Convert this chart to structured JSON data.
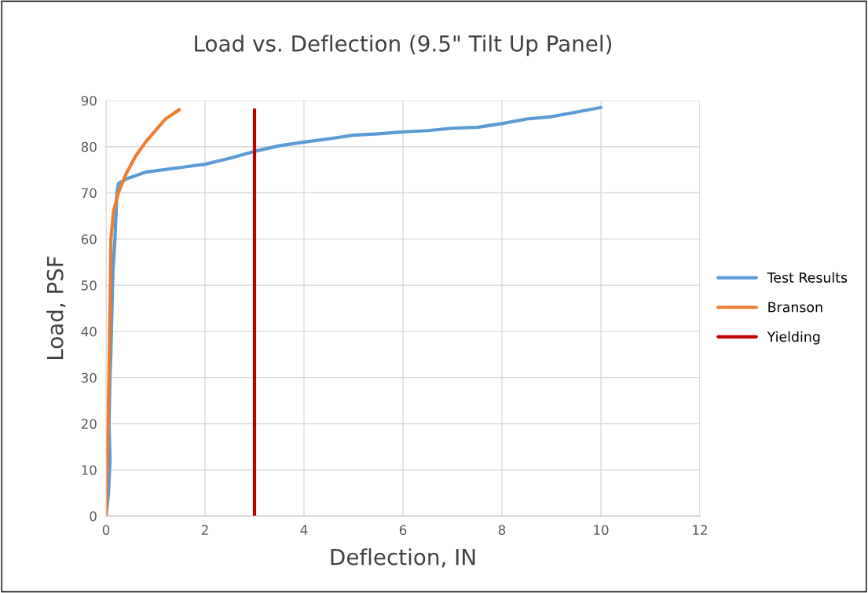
{
  "chart_data": {
    "type": "line",
    "title": "Load vs. Deflection (9.5\" Tilt Up Panel)",
    "xlabel": "Deflection, IN",
    "ylabel": "Load, PSF",
    "xlim": [
      0,
      12
    ],
    "xticks": [
      0,
      2,
      4,
      6,
      8,
      10,
      12
    ],
    "ylim": [
      0,
      90
    ],
    "yticks": [
      0,
      10,
      20,
      30,
      40,
      50,
      60,
      70,
      80,
      90
    ],
    "grid": true,
    "legend": "right",
    "marker": "none",
    "line_style": "solid",
    "series": [
      {
        "name": "Test Results",
        "color": "#5b9bd5",
        "x": [
          0,
          0.05,
          0.08,
          0.06,
          0.08,
          0.1,
          0.12,
          0.14,
          0.18,
          0.2,
          0.22,
          0.25,
          0.4,
          0.8,
          1.5,
          2,
          2.5,
          3,
          3.5,
          4,
          4.5,
          5,
          5.5,
          6,
          6.5,
          7,
          7.5,
          8,
          8.5,
          9,
          9.5,
          10
        ],
        "values": [
          0,
          5,
          12,
          20,
          30,
          36,
          45,
          53,
          60,
          65,
          70,
          72,
          73,
          74.5,
          75.5,
          76.2,
          77.5,
          79,
          80.2,
          81,
          81.7,
          82.5,
          82.8,
          83.2,
          83.5,
          84,
          84.2,
          85,
          86,
          86.5,
          87.5,
          88.5
        ]
      },
      {
        "name": "Branson",
        "color": "#ed7d31",
        "x": [
          0,
          0.05,
          0.08,
          0.1,
          0.15,
          0.25,
          0.4,
          0.6,
          0.8,
          1,
          1.2,
          1.48
        ],
        "values": [
          0,
          25,
          45,
          60,
          66,
          70,
          74,
          78,
          81,
          83.5,
          86,
          88
        ]
      },
      {
        "name": "Yielding",
        "color": "#c00000",
        "x": [
          3,
          3
        ],
        "values": [
          0,
          88
        ]
      }
    ]
  }
}
